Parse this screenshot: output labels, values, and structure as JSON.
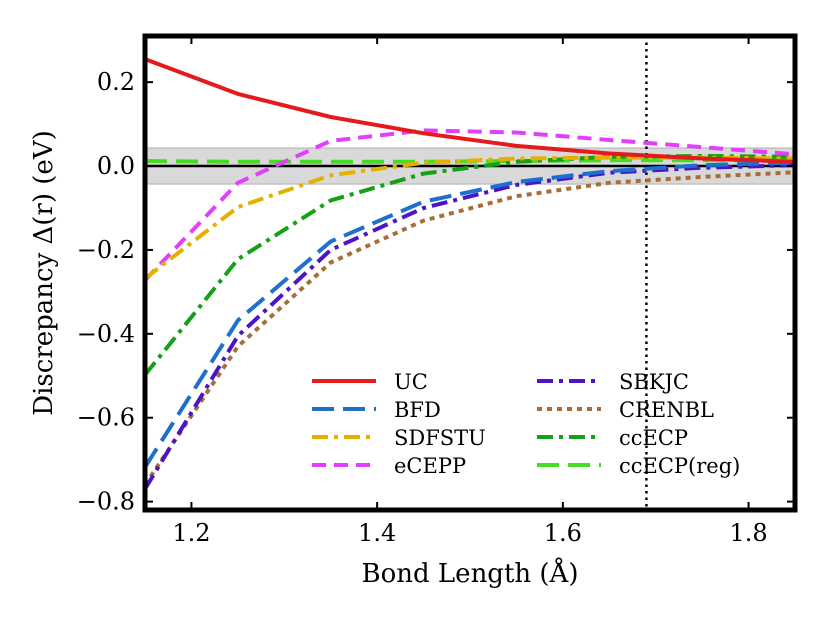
{
  "chart_data": {
    "type": "line",
    "title": "",
    "xlabel": "Bond Length (Å)",
    "ylabel": "Discrepancy Δ(r) (eV)",
    "xlim": [
      1.15,
      1.85
    ],
    "ylim": [
      -0.82,
      0.31
    ],
    "xticks": [
      1.2,
      1.4,
      1.6,
      1.8
    ],
    "xtick_labels": [
      "1.2",
      "1.4",
      "1.6",
      "1.8"
    ],
    "yticks": [
      0.2,
      0.0,
      -0.2,
      -0.4,
      -0.6,
      -0.8
    ],
    "ytick_labels": [
      "0.2",
      "0.0",
      "−0.2",
      "−0.4",
      "−0.6",
      "−0.8"
    ],
    "reference_band": {
      "y_min": -0.043,
      "y_max": 0.043,
      "color": "#d9d9d9",
      "meaning": "chemical accuracy band"
    },
    "reference_hline": 0.0,
    "reference_vline": 1.69,
    "legend_placement": "lower-right",
    "series": [
      {
        "name": "UC",
        "color": "#e41a1c",
        "dash": "solid",
        "x": [
          1.15,
          1.25,
          1.35,
          1.45,
          1.55,
          1.65,
          1.75,
          1.85
        ],
        "y": [
          0.255,
          0.172,
          0.117,
          0.078,
          0.048,
          0.03,
          0.018,
          0.01
        ]
      },
      {
        "name": "BFD",
        "color": "#1f6fce",
        "dash": "longdash",
        "x": [
          1.15,
          1.25,
          1.35,
          1.45,
          1.55,
          1.65,
          1.75,
          1.85
        ],
        "y": [
          -0.718,
          -0.368,
          -0.18,
          -0.085,
          -0.038,
          -0.012,
          0.002,
          0.008
        ]
      },
      {
        "name": "SDFSTU",
        "color": "#e6b000",
        "dash": "dashdot",
        "x": [
          1.15,
          1.25,
          1.35,
          1.45,
          1.55,
          1.65,
          1.75,
          1.85
        ],
        "y": [
          -0.268,
          -0.098,
          -0.022,
          0.008,
          0.018,
          0.02,
          0.02,
          0.018
        ]
      },
      {
        "name": "eCEPP",
        "color": "#e040fb",
        "dash": "dashed",
        "x": [
          1.15,
          1.25,
          1.35,
          1.45,
          1.55,
          1.65,
          1.75,
          1.85
        ],
        "y": [
          -0.272,
          -0.04,
          0.06,
          0.085,
          0.08,
          0.062,
          0.045,
          0.028
        ]
      },
      {
        "name": "SBKJC",
        "color": "#4b14c8",
        "dash": "dashdot",
        "x": [
          1.15,
          1.25,
          1.35,
          1.45,
          1.55,
          1.65,
          1.75,
          1.85
        ],
        "y": [
          -0.77,
          -0.405,
          -0.2,
          -0.1,
          -0.045,
          -0.016,
          -0.004,
          0.002
        ]
      },
      {
        "name": "CRENBL",
        "color": "#a86d3a",
        "dash": "dotted",
        "x": [
          1.15,
          1.25,
          1.35,
          1.45,
          1.55,
          1.65,
          1.75,
          1.85
        ],
        "y": [
          -0.76,
          -0.43,
          -0.23,
          -0.13,
          -0.072,
          -0.04,
          -0.026,
          -0.015
        ]
      },
      {
        "name": "ccECP",
        "color": "#15a015",
        "dash": "dashdot",
        "x": [
          1.15,
          1.25,
          1.35,
          1.45,
          1.55,
          1.65,
          1.75,
          1.85
        ],
        "y": [
          -0.498,
          -0.222,
          -0.082,
          -0.018,
          0.01,
          0.022,
          0.024,
          0.022
        ]
      },
      {
        "name": "ccECP(reg)",
        "color": "#44dd22",
        "dash": "longdash",
        "x": [
          1.15,
          1.25,
          1.35,
          1.45,
          1.55,
          1.65,
          1.75,
          1.85
        ],
        "y": [
          0.012,
          0.01,
          0.01,
          0.01,
          0.012,
          0.014,
          0.014,
          0.014
        ]
      }
    ]
  }
}
